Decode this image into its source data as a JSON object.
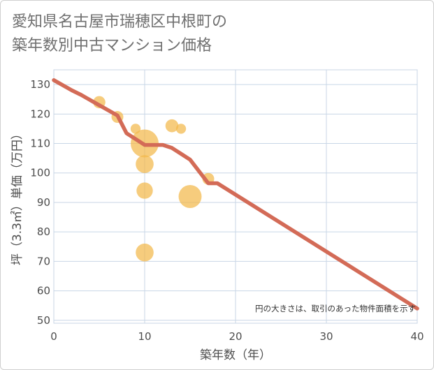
{
  "chart_data": {
    "type": "scatter",
    "title_lines": [
      "愛知県名古屋市瑞穂区中根町の",
      "築年数別中古マンション価格"
    ],
    "xlabel": "築年数（年）",
    "ylabel": "坪（3.3㎡）単価（万円）",
    "xlim": [
      0,
      40
    ],
    "ylim": [
      49,
      135
    ],
    "xticks": [
      0,
      10,
      20,
      30,
      40
    ],
    "yticks": [
      50,
      60,
      70,
      80,
      90,
      100,
      110,
      120,
      130
    ],
    "grid": true,
    "annotation": "円の大きさは、取引のあった物件面積を示す",
    "colors": {
      "bubble": "#f2b84b",
      "trend": "#d36b57",
      "grid": "#c8d6e6",
      "plot_bg": "#ffffff"
    },
    "bubbles": [
      {
        "x": 5,
        "y": 124,
        "size": 0.3
      },
      {
        "x": 7,
        "y": 119,
        "size": 0.28
      },
      {
        "x": 9,
        "y": 115,
        "size": 0.2
      },
      {
        "x": 10,
        "y": 110,
        "size": 1.0
      },
      {
        "x": 10,
        "y": 103,
        "size": 0.55
      },
      {
        "x": 10,
        "y": 94,
        "size": 0.48
      },
      {
        "x": 10,
        "y": 73,
        "size": 0.55
      },
      {
        "x": 13,
        "y": 116,
        "size": 0.33
      },
      {
        "x": 14,
        "y": 115,
        "size": 0.2
      },
      {
        "x": 15,
        "y": 92,
        "size": 0.78
      },
      {
        "x": 17,
        "y": 98,
        "size": 0.28
      }
    ],
    "trend": {
      "x": [
        0,
        2,
        3,
        5,
        7,
        8,
        10,
        12,
        13,
        15,
        17,
        18,
        40
      ],
      "y": [
        131.5,
        128,
        126.5,
        123,
        119.5,
        113.5,
        109.5,
        109.5,
        108.5,
        104.5,
        96.5,
        96.5,
        54
      ]
    }
  }
}
